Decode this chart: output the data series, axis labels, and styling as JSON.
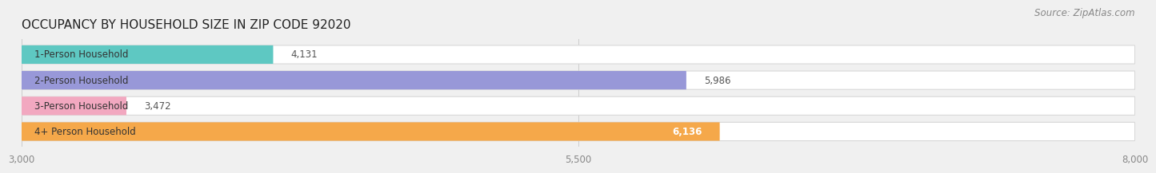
{
  "title": "OCCUPANCY BY HOUSEHOLD SIZE IN ZIP CODE 92020",
  "source": "Source: ZipAtlas.com",
  "categories": [
    "1-Person Household",
    "2-Person Household",
    "3-Person Household",
    "4+ Person Household"
  ],
  "values": [
    4131,
    5986,
    3472,
    6136
  ],
  "bar_colors": [
    "#5ec8c2",
    "#9898d8",
    "#f2a8c0",
    "#f5a84a"
  ],
  "bar_bg_color": "#efefef",
  "value_labels": [
    "4,131",
    "5,986",
    "3,472",
    "6,136"
  ],
  "value_label_colors": [
    "#333333",
    "#333333",
    "#333333",
    "#ffffff"
  ],
  "xlim_min": 3000,
  "xlim_max": 8000,
  "xticks": [
    3000,
    5500,
    8000
  ],
  "xtick_labels": [
    "3,000",
    "5,500",
    "8,000"
  ],
  "title_fontsize": 11,
  "source_fontsize": 8.5,
  "label_fontsize": 8.5,
  "value_fontsize": 8.5,
  "tick_fontsize": 8.5,
  "background_color": "#f0f0f0",
  "bar_height": 0.72,
  "bar_gap": 0.28,
  "rounding_size": 0.3
}
